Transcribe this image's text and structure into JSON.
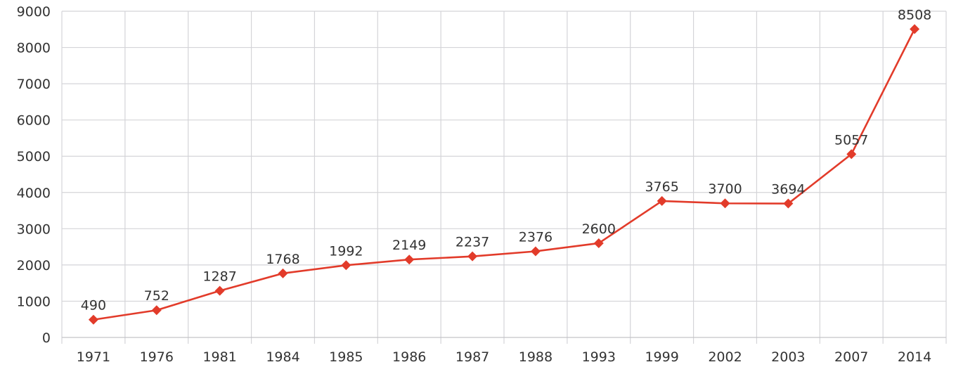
{
  "chart_data": {
    "type": "line",
    "categories": [
      "1971",
      "1976",
      "1981",
      "1984",
      "1985",
      "1986",
      "1987",
      "1988",
      "1993",
      "1999",
      "2002",
      "2003",
      "2007",
      "2014"
    ],
    "series": [
      {
        "values": [
          490,
          752,
          1287,
          1768,
          1992,
          2149,
          2237,
          2376,
          2600,
          3765,
          3700,
          3694,
          5057,
          8508
        ]
      }
    ],
    "yticks": [
      "0",
      "1000",
      "2000",
      "3000",
      "4000",
      "5000",
      "6000",
      "7000",
      "8000",
      "9000"
    ],
    "ylim": [
      0,
      9000
    ],
    "grid": true,
    "marker": "diamond",
    "data_labels": true,
    "colors": {
      "series": "#e23b2a",
      "grid": "#d4d4d8",
      "text": "#333333"
    }
  }
}
